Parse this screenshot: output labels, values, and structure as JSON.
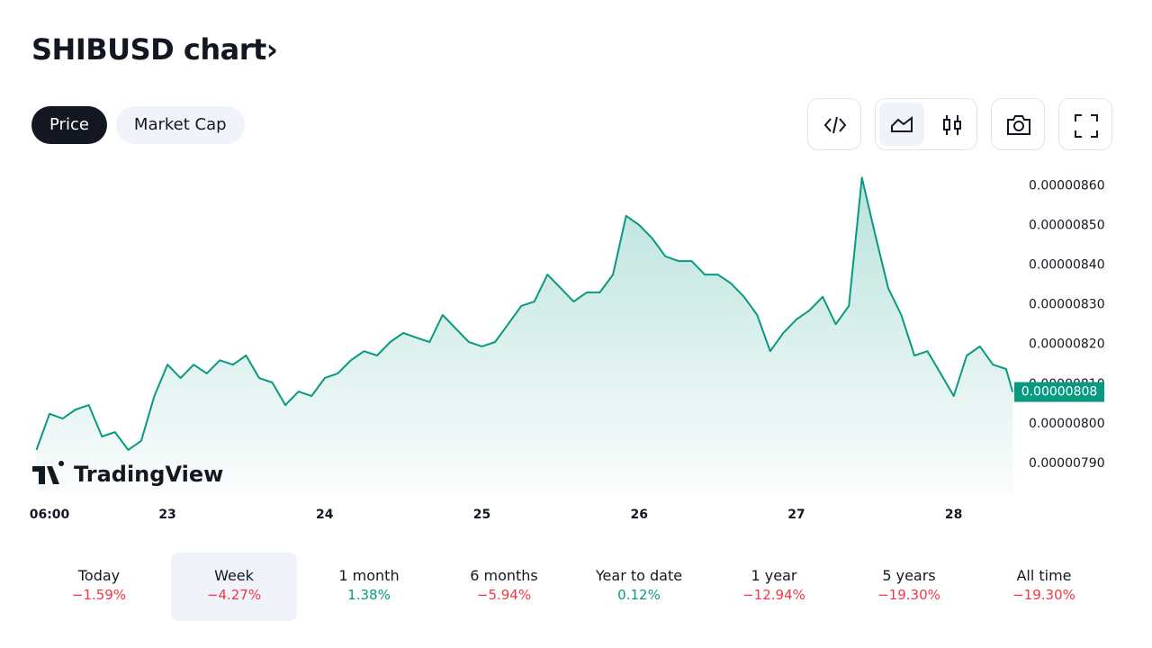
{
  "header": {
    "title": "SHIBUSD chart",
    "chevron": "›"
  },
  "tabs": {
    "items": [
      "Price",
      "Market Cap"
    ],
    "selected": 0
  },
  "chart_data": {
    "type": "line",
    "color": "#089981",
    "x": [
      4,
      6,
      8,
      10,
      12,
      14,
      16,
      18,
      20,
      22,
      24,
      26,
      28,
      30,
      32,
      34,
      36,
      38,
      40,
      42,
      44,
      46,
      48,
      50,
      52,
      54,
      56,
      58,
      60,
      62,
      64,
      66,
      68,
      70,
      72,
      74,
      76,
      78,
      80,
      82,
      84,
      86,
      88,
      90,
      92,
      94,
      96,
      98,
      100,
      102,
      104,
      106,
      108,
      110,
      112,
      114,
      116,
      118,
      120,
      122,
      124,
      126,
      128,
      130,
      132,
      134,
      136,
      138,
      140,
      142,
      144,
      146,
      148,
      150,
      152,
      153
    ],
    "values": [
      7.934e-06,
      8.025e-06,
      8.013e-06,
      8.036e-06,
      8.047e-06,
      7.968e-06,
      7.979e-06,
      7.934e-06,
      7.957e-06,
      8.07e-06,
      8.149e-06,
      8.115e-06,
      8.149e-06,
      8.127e-06,
      8.16e-06,
      8.149e-06,
      8.172e-06,
      8.115e-06,
      8.104e-06,
      8.047e-06,
      8.081e-06,
      8.07e-06,
      8.115e-06,
      8.127e-06,
      8.16e-06,
      8.183e-06,
      8.172e-06,
      8.206e-06,
      8.229e-06,
      8.217e-06,
      8.206e-06,
      8.274e-06,
      8.24e-06,
      8.206e-06,
      8.195e-06,
      8.206e-06,
      8.251e-06,
      8.297e-06,
      8.308e-06,
      8.376e-06,
      8.342e-06,
      8.308e-06,
      8.331e-06,
      8.331e-06,
      8.376e-06,
      8.524e-06,
      8.501e-06,
      8.467e-06,
      8.422e-06,
      8.41e-06,
      8.41e-06,
      8.376e-06,
      8.376e-06,
      8.354e-06,
      8.32e-06,
      8.274e-06,
      8.183e-06,
      8.229e-06,
      8.263e-06,
      8.286e-06,
      8.32e-06,
      8.251e-06,
      8.297e-06,
      8.62e-06,
      8.478e-06,
      8.342e-06,
      8.274e-06,
      8.172e-06,
      8.183e-06,
      8.127e-06,
      8.07e-06,
      8.172e-06,
      8.195e-06,
      8.149e-06,
      8.138e-06,
      8.08e-06
    ],
    "xlim": [
      3.25,
      153.25
    ],
    "xticks": [
      {
        "value": 6,
        "label": "06:00"
      },
      {
        "value": 24,
        "label": "23"
      },
      {
        "value": 48,
        "label": "24"
      },
      {
        "value": 72,
        "label": "25"
      },
      {
        "value": 96,
        "label": "26"
      },
      {
        "value": 120,
        "label": "27"
      },
      {
        "value": 144,
        "label": "28"
      }
    ],
    "ylim": [
      7.825e-06,
      8.637e-06
    ],
    "yticks": [
      {
        "value": 7.9e-06,
        "label": "0.00000790"
      },
      {
        "value": 8e-06,
        "label": "0.00000800"
      },
      {
        "value": 8.1e-06,
        "label": "0.00000810"
      },
      {
        "value": 8.2e-06,
        "label": "0.00000820"
      },
      {
        "value": 8.3e-06,
        "label": "0.00000830"
      },
      {
        "value": 8.4e-06,
        "label": "0.00000840"
      },
      {
        "value": 8.5e-06,
        "label": "0.00000850"
      },
      {
        "value": 8.6e-06,
        "label": "0.00000860"
      }
    ],
    "last_value": {
      "value": 8.08e-06,
      "label": "0.00000808"
    },
    "watermark": "TradingView"
  },
  "periods": {
    "items": [
      {
        "label": "Today",
        "change": "−1.59%"
      },
      {
        "label": "Week",
        "change": "−4.27%"
      },
      {
        "label": "1 month",
        "change": "1.38%"
      },
      {
        "label": "6 months",
        "change": "−5.94%"
      },
      {
        "label": "Year to date",
        "change": "0.12%"
      },
      {
        "label": "1 year",
        "change": "−12.94%"
      },
      {
        "label": "5 years",
        "change": "−19.30%"
      },
      {
        "label": "All time",
        "change": "−19.30%"
      }
    ],
    "selected": 1
  }
}
